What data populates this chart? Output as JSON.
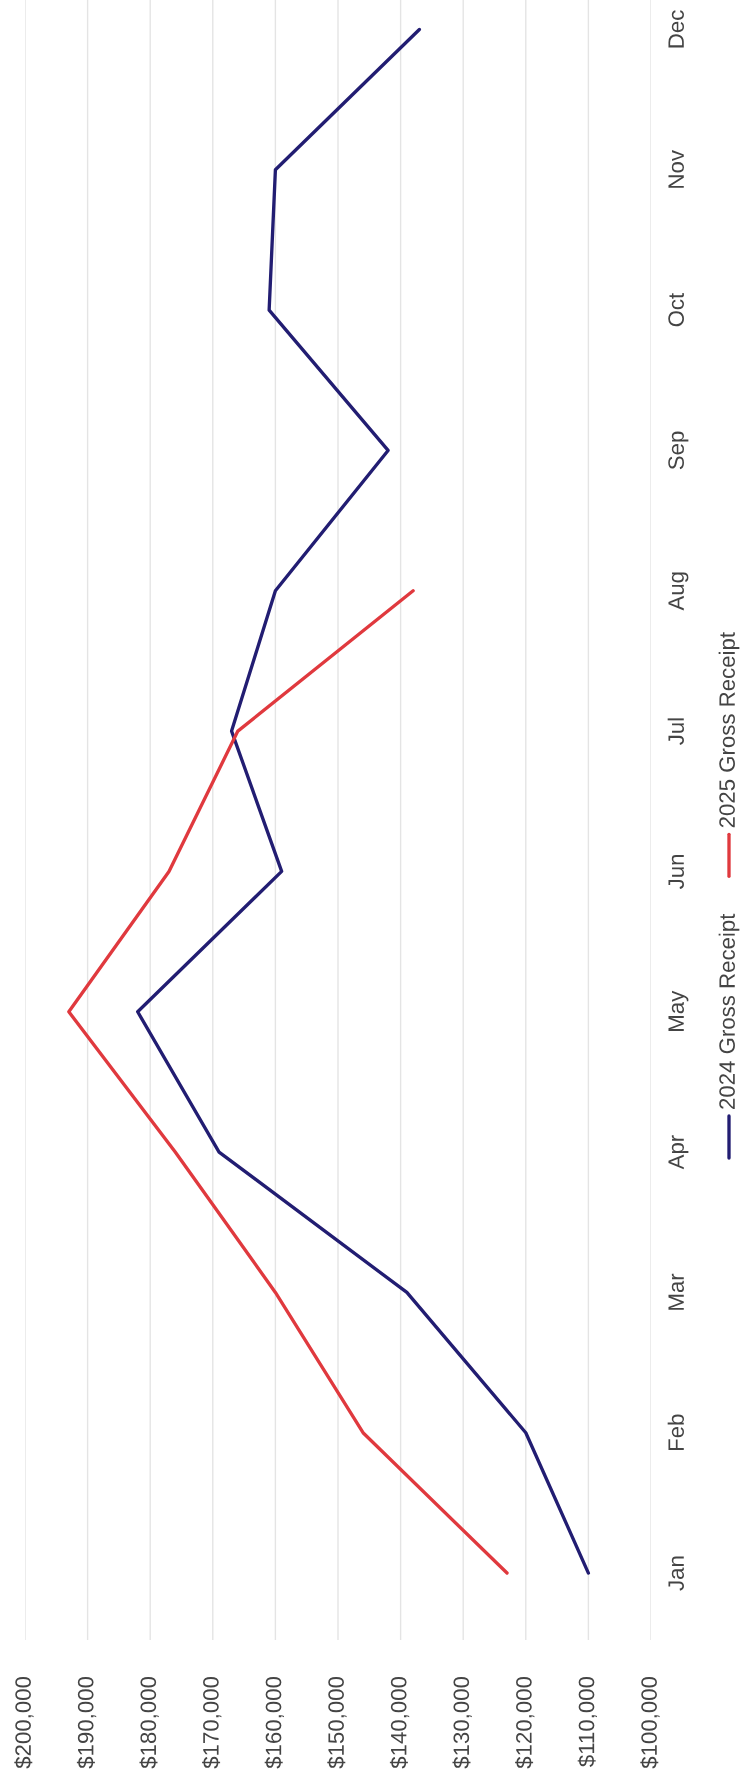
{
  "chart_data": {
    "type": "line",
    "orientation": "horizontal",
    "categories": [
      "Dec",
      "Nov",
      "Oct",
      "Sep",
      "Aug",
      "Jul",
      "Jun",
      "May",
      "Apr",
      "Mar",
      "Feb",
      "Jan"
    ],
    "series": [
      {
        "name": "2024 Gross Receipt",
        "color": "#221d72",
        "values": [
          137000,
          160000,
          161000,
          142000,
          160000,
          167000,
          159000,
          182000,
          169000,
          139000,
          120000,
          110000
        ]
      },
      {
        "name": "2025 Gross Receipt",
        "color": "#e0393e",
        "values": [
          null,
          null,
          null,
          null,
          138000,
          166000,
          177000,
          193000,
          176000,
          160000,
          146000,
          123000
        ]
      }
    ],
    "xlim": [
      200000,
      100000
    ],
    "xticks": [
      {
        "value": 200000,
        "label": "$200,000"
      },
      {
        "value": 190000,
        "label": "$190,000"
      },
      {
        "value": 180000,
        "label": "$180,000"
      },
      {
        "value": 170000,
        "label": "$170,000"
      },
      {
        "value": 160000,
        "label": "$160,000"
      },
      {
        "value": 150000,
        "label": "$150,000"
      },
      {
        "value": 140000,
        "label": "$140,000"
      },
      {
        "value": 130000,
        "label": "$130,000"
      },
      {
        "value": 120000,
        "label": "$120,000"
      },
      {
        "value": 110000,
        "label": "$110,000"
      },
      {
        "value": 100000,
        "label": "$100,000"
      }
    ],
    "grid": "x",
    "legend": "right"
  }
}
